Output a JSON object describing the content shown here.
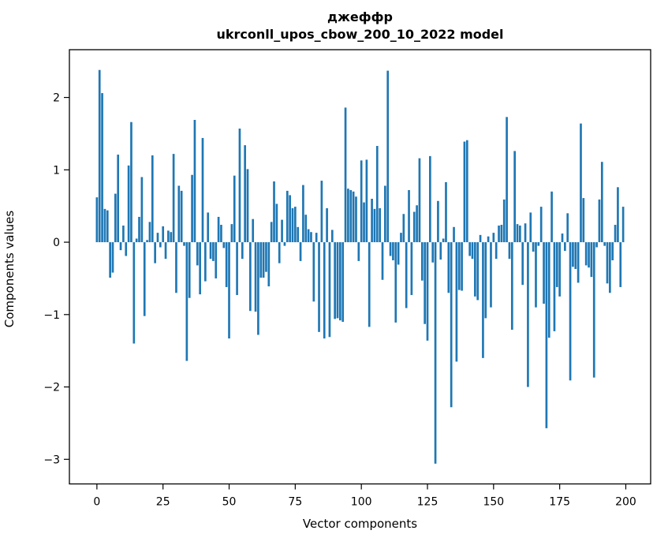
{
  "title": {
    "line1": "джеффр",
    "line2": "ukrconll_upos_cbow_200_10_2022 model"
  },
  "chart_data": {
    "type": "bar",
    "title": "джеффр\nukrconll_upos_cbow_200_10_2022 model",
    "xlabel": "Vector components",
    "ylabel": "Components values",
    "legend": "none",
    "grid": false,
    "bar_color": "#1f77b4",
    "n_bars": 200,
    "x_ticks": [
      0,
      25,
      50,
      75,
      100,
      125,
      150,
      175,
      200
    ],
    "y_ticks": [
      -3,
      -2,
      -1,
      0,
      1,
      2
    ],
    "xlim": [
      -10.4,
      209.4
    ],
    "ylim": [
      -3.34,
      2.66
    ],
    "values": [
      0.62,
      2.38,
      2.06,
      0.46,
      0.44,
      -0.49,
      -0.42,
      0.67,
      1.21,
      -0.11,
      0.23,
      -0.19,
      1.06,
      1.66,
      -1.4,
      0.05,
      0.35,
      0.9,
      -1.02,
      0.03,
      0.28,
      1.2,
      -0.29,
      0.13,
      -0.07,
      0.22,
      -0.23,
      0.16,
      0.14,
      1.22,
      -0.7,
      0.78,
      0.71,
      -0.05,
      -1.64,
      -0.77,
      0.93,
      1.69,
      -0.32,
      -0.72,
      1.44,
      -0.54,
      0.41,
      -0.23,
      -0.26,
      -0.5,
      0.35,
      0.24,
      -0.08,
      -0.62,
      -1.33,
      0.25,
      0.92,
      -0.73,
      1.57,
      -0.23,
      1.34,
      1.01,
      -0.95,
      0.32,
      -0.96,
      -1.28,
      -0.49,
      -0.49,
      -0.41,
      -0.61,
      0.28,
      0.84,
      0.53,
      -0.29,
      0.31,
      -0.05,
      0.71,
      0.65,
      0.47,
      0.49,
      0.21,
      -0.26,
      0.79,
      0.38,
      0.18,
      0.14,
      -0.82,
      0.13,
      -1.24,
      0.85,
      -1.33,
      0.47,
      -1.31,
      0.17,
      -1.06,
      -1.05,
      -1.08,
      -1.1,
      1.86,
      0.74,
      0.72,
      0.7,
      0.63,
      -0.26,
      1.13,
      0.55,
      1.14,
      -1.17,
      0.6,
      0.46,
      1.33,
      0.47,
      -0.52,
      0.78,
      2.37,
      -0.19,
      -0.25,
      -1.11,
      -0.31,
      0.13,
      0.39,
      -0.91,
      0.72,
      -0.73,
      0.42,
      0.51,
      1.16,
      -0.53,
      -1.13,
      -1.36,
      1.19,
      -0.28,
      -3.06,
      0.57,
      -0.24,
      0.05,
      0.83,
      -0.7,
      -2.28,
      0.21,
      -1.65,
      -0.66,
      -0.67,
      1.39,
      1.41,
      -0.19,
      -0.23,
      -0.75,
      -0.8,
      0.1,
      -1.6,
      -1.05,
      0.08,
      -0.9,
      0.13,
      -0.23,
      0.23,
      0.24,
      0.59,
      1.73,
      -0.23,
      -1.21,
      1.26,
      0.25,
      0.23,
      -0.59,
      0.26,
      -2.0,
      0.41,
      -0.13,
      -0.9,
      -0.05,
      0.49,
      -0.85,
      -2.57,
      -1.32,
      0.7,
      -1.23,
      -0.62,
      -0.75,
      0.12,
      -0.12,
      0.4,
      -1.91,
      -0.34,
      -0.37,
      -0.56,
      1.64,
      0.61,
      -0.32,
      -0.35,
      -0.48,
      -1.87,
      -0.07,
      0.59,
      1.11,
      -0.05,
      -0.57,
      -0.7,
      -0.25,
      0.24,
      0.76,
      -0.62,
      0.49
    ]
  }
}
